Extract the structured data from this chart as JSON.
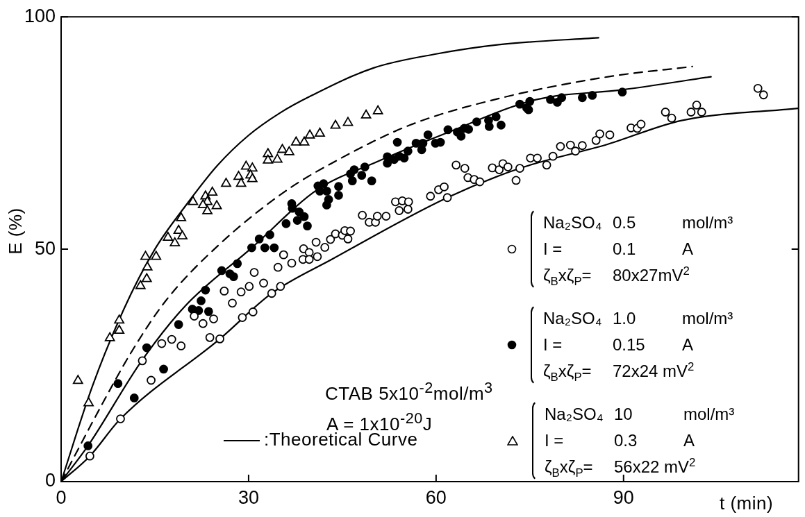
{
  "chart_data": {
    "type": "scatter",
    "xlabel": "t (min)",
    "ylabel": "E (%)",
    "xlim": [
      0,
      118
    ],
    "ylim": [
      0,
      100
    ],
    "xticks": [
      0,
      30,
      60,
      90
    ],
    "yticks": [
      0,
      50,
      100
    ],
    "legend": "right",
    "annotations": [
      "CTAB 5x10$^{-2}$mol/m$^{3}$",
      "A = 1x10$^{-20}$J",
      ":Theoretical Curve"
    ],
    "series": [
      {
        "name": "Na₂SO₄\t0.5\tmol/m³\nI =\t0.1\tA\nζ$_{B}$xζ$_{P}$=\t80x27mV$^{2}$",
        "color": "#ffffff",
        "marker": "circle",
        "x": [
          4.6,
          9.5,
          13.0,
          14.4,
          16.1,
          17.7,
          19.2,
          21.3,
          22.7,
          23.8,
          24.4,
          25.4,
          26.1,
          27.4,
          28.8,
          29.0,
          30.1,
          30.7,
          30.9,
          32.4,
          33.7,
          34.7,
          35.1,
          35.6,
          36.9,
          38.7,
          38.8,
          39.7,
          39.7,
          40.8,
          41.0,
          42.2,
          43.1,
          43.9,
          45.0,
          45.4,
          45.9,
          46.3,
          48.2,
          49.3,
          50.3,
          50.6,
          52.0,
          53.5,
          54.1,
          54.6,
          55.5,
          55.6,
          59.1,
          60.4,
          61.3,
          61.8,
          63.2,
          64.6,
          65.1,
          66.1,
          67.0,
          69.0,
          70.1,
          70.7,
          71.5,
          72.8,
          73.4,
          75.1,
          76.2,
          77.7,
          78.7,
          79.9,
          81.5,
          82.3,
          83.4,
          85.6,
          86.2,
          87.8,
          91.2,
          92.2,
          92.8,
          96.7,
          97.7,
          100.8,
          101.7,
          102.5,
          111.5,
          112.4
        ],
        "values": [
          5.5,
          13.5,
          26.0,
          21.8,
          29.7,
          30.6,
          29.2,
          35.6,
          34.0,
          31.0,
          35.0,
          30.7,
          41.0,
          38.4,
          40.8,
          35.3,
          42.0,
          36.5,
          45.0,
          42.7,
          40.5,
          46.1,
          42.0,
          48.8,
          47.0,
          47.8,
          50.1,
          49.3,
          47.8,
          51.5,
          48.4,
          50.4,
          52.1,
          53.3,
          53.0,
          54.0,
          52.2,
          53.9,
          57.3,
          55.8,
          55.8,
          57.1,
          57.1,
          60.2,
          58.3,
          60.4,
          58.6,
          60.2,
          61.4,
          62.8,
          63.4,
          61.1,
          68.1,
          67.4,
          65.4,
          65.0,
          64.5,
          67.5,
          67.1,
          68.4,
          67.7,
          64.8,
          67.4,
          69.6,
          69.6,
          68.1,
          70.0,
          72.1,
          72.4,
          71.1,
          72.3,
          73.4,
          74.8,
          74.6,
          76.1,
          76.0,
          76.9,
          79.5,
          78.2,
          79.5,
          81.0,
          79.5,
          84.6,
          83.2
        ]
      },
      {
        "name": "Na₂SO₄\t1.0\tmol/m³\nI =\t0.15\tA\nζ$_{B}$xζ$_{P}$=\t72x24 mV$^{2}$",
        "color": "#000000",
        "marker": "circle",
        "x": [
          4.3,
          9.1,
          11.7,
          13.7,
          16.4,
          18.8,
          21.0,
          22.0,
          22.4,
          23.6,
          23.1,
          25.7,
          27.0,
          27.6,
          28.2,
          30.5,
          32.6,
          34.1,
          31.7,
          33.4,
          36.0,
          36.9,
          37.0,
          38.1,
          37.8,
          38.9,
          39.4,
          41.1,
          42.0,
          41.4,
          42.5,
          42.8,
          42.5,
          44.4,
          44.4,
          46.9,
          46.3,
          46.6,
          48.1,
          48.6,
          49.7,
          52.2,
          52.2,
          53.3,
          54.1,
          54.9,
          55.5,
          53.8,
          56.8,
          57.9,
          57.7,
          58.7,
          59.9,
          60.7,
          61.9,
          63.4,
          64.0,
          64.5,
          65.2,
          66.5,
          68.4,
          68.5,
          69.6,
          70.4,
          73.4,
          74.5,
          75.0,
          74.8,
          78.3,
          79.4,
          80.1,
          83.4,
          85.0,
          89.8
        ],
        "values": [
          7.7,
          21.1,
          18.0,
          28.8,
          24.2,
          33.8,
          37.1,
          36.8,
          38.9,
          36.6,
          41.2,
          45.4,
          44.7,
          44.1,
          46.9,
          50.3,
          50.3,
          50.3,
          52.2,
          53.1,
          55.5,
          59.8,
          58.8,
          58.0,
          56.2,
          57.0,
          55.0,
          63.6,
          64.1,
          62.5,
          62.5,
          60.7,
          59.5,
          61.6,
          63.5,
          67.1,
          66.2,
          64.7,
          65.9,
          67.7,
          64.7,
          69.9,
          68.5,
          69.3,
          70.0,
          69.6,
          71.1,
          73.0,
          72.8,
          72.8,
          71.4,
          74.6,
          72.8,
          73.0,
          75.7,
          75.2,
          74.3,
          76.0,
          75.8,
          77.4,
          77.7,
          76.4,
          78.5,
          76.7,
          81.2,
          80.4,
          81.8,
          80.0,
          82.2,
          81.6,
          82.6,
          82.6,
          83.1,
          83.8
        ]
      },
      {
        "name": "Na₂SO₄\t10\tmol/m³\nI =\t0.3\tA\nζ$_{B}$xζ$_{P}$=\t56x22 mV$^{2}$",
        "color": "#ffffff",
        "marker": "triangle",
        "x": [
          2.7,
          4.4,
          7.8,
          9.3,
          9.3,
          12.7,
          13.7,
          13.5,
          13.8,
          15.2,
          17.1,
          18.2,
          18.8,
          19.4,
          19.2,
          21.1,
          23.1,
          24.2,
          23.4,
          22.7,
          24.9,
          23.4,
          26.4,
          28.4,
          28.8,
          29.6,
          30.6,
          30.3,
          30.6,
          33.1,
          33.1,
          34.6,
          35.4,
          36.5,
          37.6,
          38.9,
          39.8,
          41.4,
          43.9,
          45.9,
          48.8,
          50.7
        ],
        "values": [
          21.7,
          16.9,
          30.9,
          32.5,
          34.7,
          42.1,
          43.6,
          48.4,
          46.1,
          48.4,
          52.5,
          51.3,
          54.0,
          52.8,
          56.7,
          60.2,
          61.4,
          62.2,
          60.2,
          59.5,
          59.3,
          58.2,
          64.1,
          65.6,
          64.1,
          67.8,
          67.4,
          65.9,
          65.1,
          70.5,
          69.1,
          69.3,
          71.4,
          70.9,
          73.0,
          73.0,
          74.5,
          74.9,
          76.6,
          77.2,
          78.8,
          79.7
        ]
      },
      {
        "type": "line",
        "color": "#000000",
        "line_style": "solid",
        "x": [
          0,
          5,
          10,
          15,
          20,
          25,
          30,
          35,
          40,
          50,
          60,
          70,
          86
        ],
        "values": [
          0,
          20.5,
          37,
          50,
          59.5,
          68,
          74.5,
          79.3,
          83,
          89,
          92,
          94,
          95.5
        ]
      },
      {
        "type": "line",
        "color": "#000000",
        "line_style": "dashed",
        "x": [
          0,
          6.9,
          11.3,
          16.8,
          25.3,
          35.9,
          43.3,
          55.8,
          70.6,
          87.5,
          101
        ],
        "values": [
          0,
          17.5,
          28,
          39,
          51,
          62.5,
          68.5,
          76.7,
          82.6,
          87.1,
          89.3
        ]
      },
      {
        "type": "line",
        "color": "#000000",
        "line_style": "solid",
        "x": [
          0,
          4.3,
          12.9,
          19.8,
          30.5,
          41.1,
          50,
          61.3,
          76.1,
          89.8,
          104
        ],
        "values": [
          0,
          7.7,
          26,
          37.7,
          50.3,
          62.9,
          68.5,
          74.8,
          82.2,
          84.3,
          87.1
        ]
      },
      {
        "type": "line",
        "color": "#000000",
        "line_style": "solid",
        "x": [
          0,
          4.6,
          9.5,
          25.4,
          33.7,
          43.3,
          61.8,
          73.4,
          87.5,
          99.3,
          117.9
        ],
        "values": [
          0,
          5.5,
          13.5,
          30.7,
          40.5,
          47.8,
          61.1,
          67.4,
          72.6,
          77.7,
          80.3
        ]
      }
    ]
  }
}
